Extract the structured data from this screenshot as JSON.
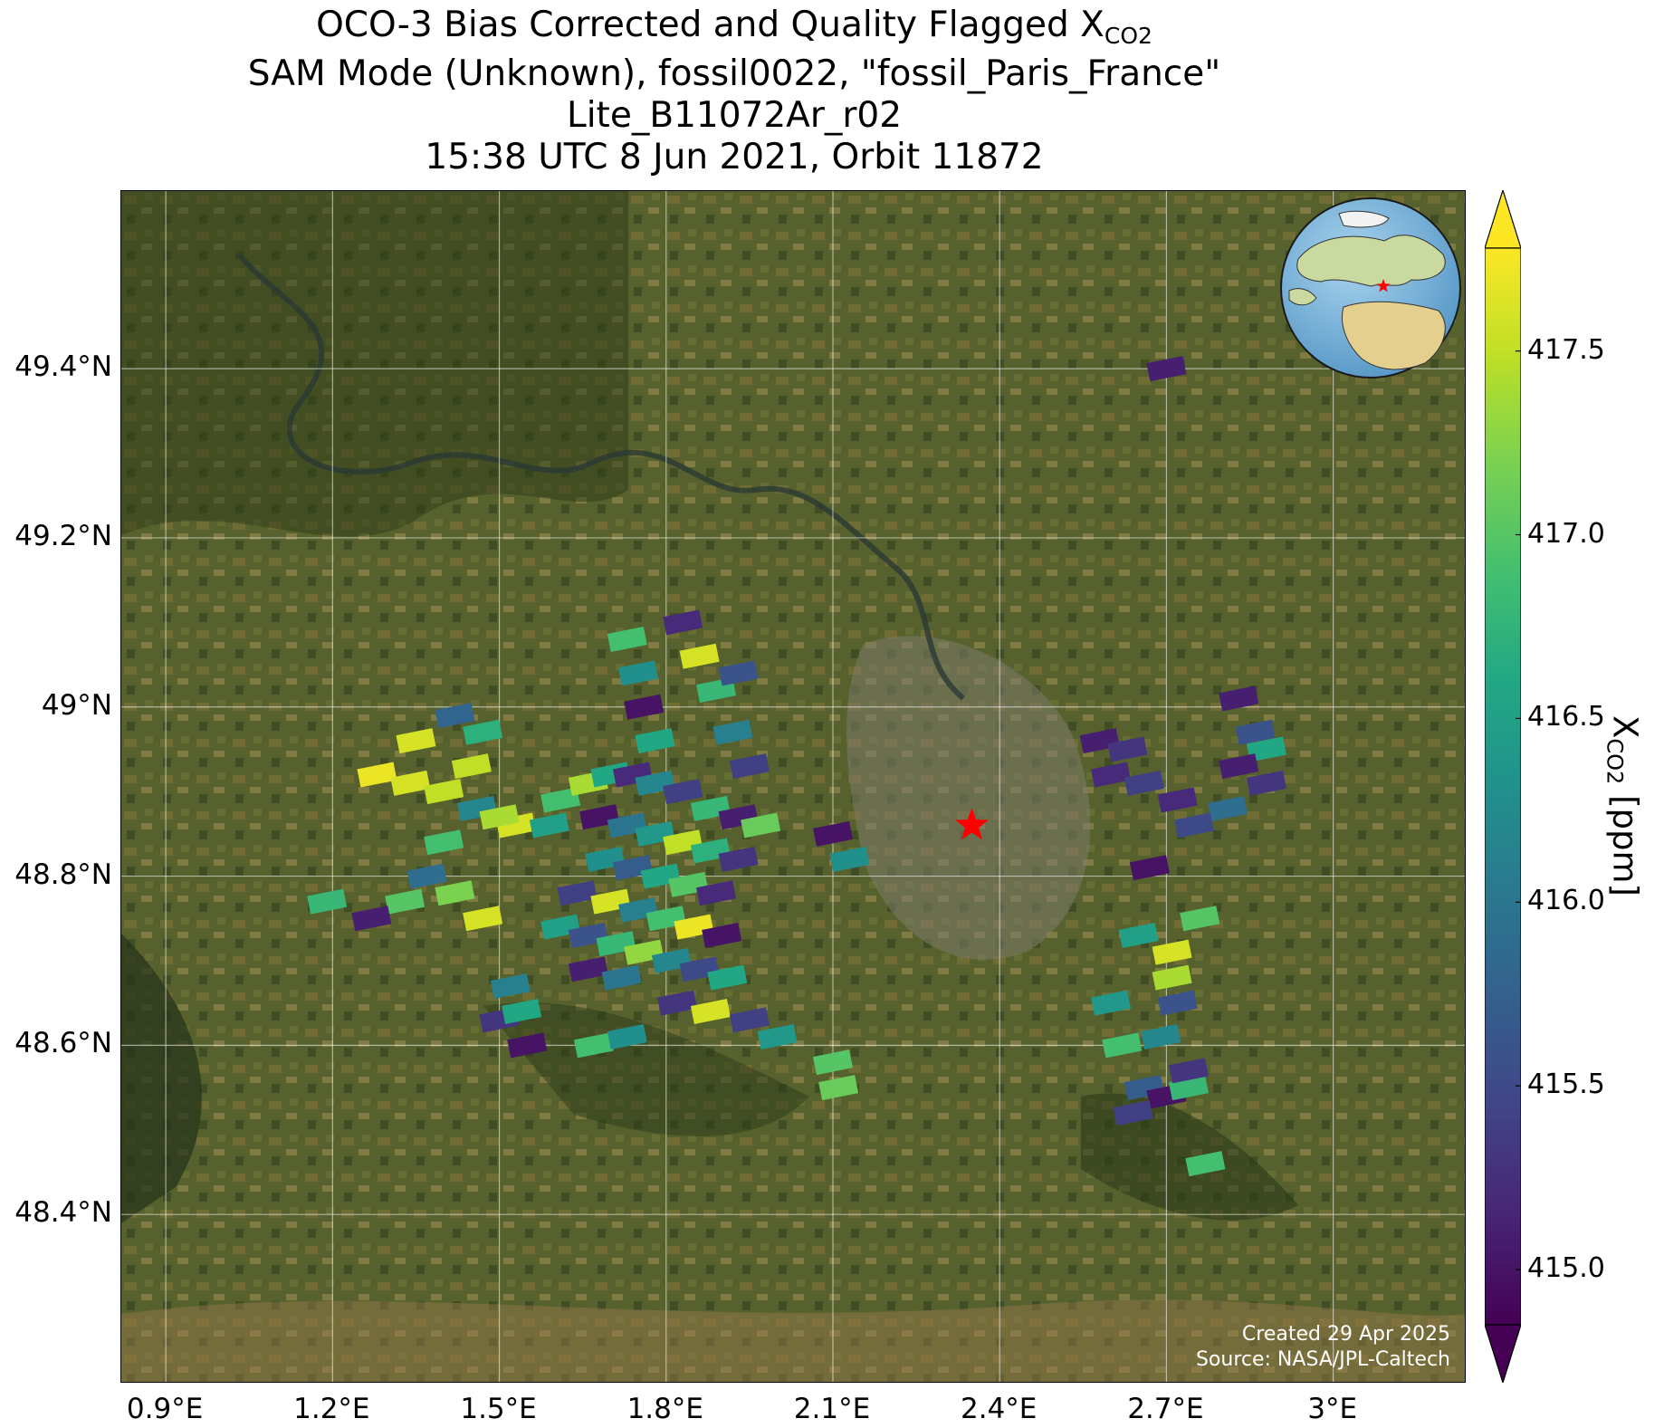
{
  "title": {
    "line1_prefix": "OCO-3 Bias Corrected and Quality Flagged X",
    "line1_sub": "CO2",
    "line2": "SAM Mode (Unknown), fossil0022, \"fossil_Paris_France\"",
    "line3": "Lite_B11072Ar_r02",
    "line4": "15:38 UTC 8 Jun 2021, Orbit 11872"
  },
  "map": {
    "lon_range": [
      0.82,
      3.24
    ],
    "lat_range": [
      48.2,
      49.61
    ],
    "lat_ticks": [
      {
        "value": 48.4,
        "label": "48.4°N"
      },
      {
        "value": 48.6,
        "label": "48.6°N"
      },
      {
        "value": 48.8,
        "label": "48.8°N"
      },
      {
        "value": 49.0,
        "label": "49°N"
      },
      {
        "value": 49.2,
        "label": "49.2°N"
      },
      {
        "value": 49.4,
        "label": "49.4°N"
      }
    ],
    "lon_ticks": [
      {
        "value": 0.9,
        "label": "0.9°E"
      },
      {
        "value": 1.2,
        "label": "1.2°E"
      },
      {
        "value": 1.5,
        "label": "1.5°E"
      },
      {
        "value": 1.8,
        "label": "1.8°E"
      },
      {
        "value": 2.1,
        "label": "2.1°E"
      },
      {
        "value": 2.4,
        "label": "2.4°E"
      },
      {
        "value": 2.7,
        "label": "2.7°E"
      },
      {
        "value": 3.0,
        "label": "3°E"
      }
    ],
    "target_marker": {
      "name": "fossil_Paris_France",
      "lon": 2.35,
      "lat": 48.86,
      "color": "#ff0000"
    },
    "background_color": "#4a5a2a"
  },
  "colorbar": {
    "min": 414.85,
    "max": 417.78,
    "ticks": [
      {
        "value": 415.0,
        "label": "415.0"
      },
      {
        "value": 415.5,
        "label": "415.5"
      },
      {
        "value": 416.0,
        "label": "416.0"
      },
      {
        "value": 416.5,
        "label": "416.5"
      },
      {
        "value": 417.0,
        "label": "417.0"
      },
      {
        "value": 417.5,
        "label": "417.5"
      }
    ],
    "label_prefix": "X",
    "label_sub": "CO2",
    "label_suffix": " [ppm]",
    "colormap": "viridis",
    "extend": "both"
  },
  "credits": {
    "created": "Created 29 Apr 2025",
    "source": "Source: NASA/JPL-Caltech"
  },
  "inset_globe": {
    "marker_color": "#ff0000"
  },
  "chart_data": {
    "type": "scatter",
    "variable": "XCO2",
    "points": [
      {
        "lon": 1.53,
        "lat": 48.86,
        "xco2": 417.6
      },
      {
        "lon": 1.59,
        "lat": 48.86,
        "xco2": 416.5
      },
      {
        "lon": 1.61,
        "lat": 48.89,
        "xco2": 416.9
      },
      {
        "lon": 1.66,
        "lat": 48.91,
        "xco2": 417.4
      },
      {
        "lon": 1.7,
        "lat": 48.92,
        "xco2": 416.6
      },
      {
        "lon": 1.74,
        "lat": 48.92,
        "xco2": 415.2
      },
      {
        "lon": 1.78,
        "lat": 48.91,
        "xco2": 416.2
      },
      {
        "lon": 1.83,
        "lat": 48.9,
        "xco2": 415.4
      },
      {
        "lon": 1.88,
        "lat": 48.88,
        "xco2": 416.8
      },
      {
        "lon": 1.93,
        "lat": 48.87,
        "xco2": 415.1
      },
      {
        "lon": 1.97,
        "lat": 48.86,
        "xco2": 417.1
      },
      {
        "lon": 1.68,
        "lat": 48.87,
        "xco2": 415.0
      },
      {
        "lon": 1.73,
        "lat": 48.86,
        "xco2": 416.0
      },
      {
        "lon": 1.78,
        "lat": 48.85,
        "xco2": 416.4
      },
      {
        "lon": 1.83,
        "lat": 48.84,
        "xco2": 417.5
      },
      {
        "lon": 1.88,
        "lat": 48.83,
        "xco2": 416.7
      },
      {
        "lon": 1.93,
        "lat": 48.82,
        "xco2": 415.3
      },
      {
        "lon": 1.69,
        "lat": 48.82,
        "xco2": 416.3
      },
      {
        "lon": 1.74,
        "lat": 48.81,
        "xco2": 415.7
      },
      {
        "lon": 1.79,
        "lat": 48.8,
        "xco2": 416.6
      },
      {
        "lon": 1.84,
        "lat": 48.79,
        "xco2": 417.0
      },
      {
        "lon": 1.89,
        "lat": 48.78,
        "xco2": 415.2
      },
      {
        "lon": 1.64,
        "lat": 48.78,
        "xco2": 415.4
      },
      {
        "lon": 1.7,
        "lat": 48.77,
        "xco2": 417.6
      },
      {
        "lon": 1.75,
        "lat": 48.76,
        "xco2": 416.1
      },
      {
        "lon": 1.8,
        "lat": 48.75,
        "xco2": 416.9
      },
      {
        "lon": 1.85,
        "lat": 48.74,
        "xco2": 417.7
      },
      {
        "lon": 1.9,
        "lat": 48.73,
        "xco2": 415.0
      },
      {
        "lon": 1.61,
        "lat": 48.74,
        "xco2": 416.5
      },
      {
        "lon": 1.66,
        "lat": 48.73,
        "xco2": 415.6
      },
      {
        "lon": 1.71,
        "lat": 48.72,
        "xco2": 416.8
      },
      {
        "lon": 1.76,
        "lat": 48.71,
        "xco2": 417.3
      },
      {
        "lon": 1.81,
        "lat": 48.7,
        "xco2": 416.2
      },
      {
        "lon": 1.86,
        "lat": 48.69,
        "xco2": 415.5
      },
      {
        "lon": 1.91,
        "lat": 48.68,
        "xco2": 416.6
      },
      {
        "lon": 1.66,
        "lat": 48.69,
        "xco2": 415.1
      },
      {
        "lon": 1.72,
        "lat": 48.68,
        "xco2": 416.0
      },
      {
        "lon": 1.82,
        "lat": 48.65,
        "xco2": 415.3
      },
      {
        "lon": 1.88,
        "lat": 48.64,
        "xco2": 417.6
      },
      {
        "lon": 1.95,
        "lat": 48.63,
        "xco2": 415.4
      },
      {
        "lon": 1.73,
        "lat": 49.08,
        "xco2": 416.9
      },
      {
        "lon": 1.75,
        "lat": 49.04,
        "xco2": 416.3
      },
      {
        "lon": 1.76,
        "lat": 49.0,
        "xco2": 415.0
      },
      {
        "lon": 1.78,
        "lat": 48.96,
        "xco2": 416.6
      },
      {
        "lon": 1.83,
        "lat": 49.1,
        "xco2": 415.2
      },
      {
        "lon": 1.86,
        "lat": 49.06,
        "xco2": 417.6
      },
      {
        "lon": 1.89,
        "lat": 49.02,
        "xco2": 416.8
      },
      {
        "lon": 1.92,
        "lat": 48.97,
        "xco2": 416.1
      },
      {
        "lon": 1.95,
        "lat": 48.93,
        "xco2": 415.4
      },
      {
        "lon": 1.93,
        "lat": 49.04,
        "xco2": 415.6
      },
      {
        "lon": 1.28,
        "lat": 48.92,
        "xco2": 417.7
      },
      {
        "lon": 1.34,
        "lat": 48.91,
        "xco2": 417.6
      },
      {
        "lon": 1.4,
        "lat": 48.9,
        "xco2": 417.5
      },
      {
        "lon": 1.46,
        "lat": 48.88,
        "xco2": 416.2
      },
      {
        "lon": 1.5,
        "lat": 48.87,
        "xco2": 417.4
      },
      {
        "lon": 1.35,
        "lat": 48.96,
        "xco2": 417.6
      },
      {
        "lon": 1.42,
        "lat": 48.99,
        "xco2": 415.8
      },
      {
        "lon": 1.47,
        "lat": 48.97,
        "xco2": 416.7
      },
      {
        "lon": 1.45,
        "lat": 48.93,
        "xco2": 417.5
      },
      {
        "lon": 1.4,
        "lat": 48.84,
        "xco2": 416.9
      },
      {
        "lon": 1.37,
        "lat": 48.8,
        "xco2": 415.9
      },
      {
        "lon": 1.42,
        "lat": 48.78,
        "xco2": 417.2
      },
      {
        "lon": 1.33,
        "lat": 48.77,
        "xco2": 417.0
      },
      {
        "lon": 1.27,
        "lat": 48.75,
        "xco2": 415.1
      },
      {
        "lon": 1.19,
        "lat": 48.77,
        "xco2": 416.8
      },
      {
        "lon": 1.47,
        "lat": 48.75,
        "xco2": 417.6
      },
      {
        "lon": 1.52,
        "lat": 48.67,
        "xco2": 416.1
      },
      {
        "lon": 1.5,
        "lat": 48.63,
        "xco2": 415.3
      },
      {
        "lon": 1.54,
        "lat": 48.64,
        "xco2": 416.6
      },
      {
        "lon": 1.55,
        "lat": 48.6,
        "xco2": 415.0
      },
      {
        "lon": 1.67,
        "lat": 48.6,
        "xco2": 416.9
      },
      {
        "lon": 1.73,
        "lat": 48.61,
        "xco2": 416.3
      },
      {
        "lon": 2.0,
        "lat": 48.61,
        "xco2": 416.4
      },
      {
        "lon": 2.1,
        "lat": 48.58,
        "xco2": 417.0
      },
      {
        "lon": 2.11,
        "lat": 48.55,
        "xco2": 417.1
      },
      {
        "lon": 2.1,
        "lat": 48.85,
        "xco2": 415.0
      },
      {
        "lon": 2.13,
        "lat": 48.82,
        "xco2": 416.3
      },
      {
        "lon": 2.58,
        "lat": 48.96,
        "xco2": 415.1
      },
      {
        "lon": 2.63,
        "lat": 48.95,
        "xco2": 415.3
      },
      {
        "lon": 2.6,
        "lat": 48.92,
        "xco2": 415.2
      },
      {
        "lon": 2.66,
        "lat": 48.91,
        "xco2": 415.4
      },
      {
        "lon": 2.72,
        "lat": 48.89,
        "xco2": 415.2
      },
      {
        "lon": 2.83,
        "lat": 49.01,
        "xco2": 415.1
      },
      {
        "lon": 2.86,
        "lat": 48.97,
        "xco2": 415.6
      },
      {
        "lon": 2.88,
        "lat": 48.95,
        "xco2": 416.6
      },
      {
        "lon": 2.83,
        "lat": 48.93,
        "xco2": 415.1
      },
      {
        "lon": 2.88,
        "lat": 48.91,
        "xco2": 415.3
      },
      {
        "lon": 2.81,
        "lat": 48.88,
        "xco2": 415.9
      },
      {
        "lon": 2.75,
        "lat": 48.86,
        "xco2": 415.5
      },
      {
        "lon": 2.7,
        "lat": 49.4,
        "xco2": 415.1
      },
      {
        "lon": 2.67,
        "lat": 48.81,
        "xco2": 415.0
      },
      {
        "lon": 2.76,
        "lat": 48.75,
        "xco2": 417.0
      },
      {
        "lon": 2.65,
        "lat": 48.73,
        "xco2": 416.5
      },
      {
        "lon": 2.71,
        "lat": 48.71,
        "xco2": 417.6
      },
      {
        "lon": 2.71,
        "lat": 48.68,
        "xco2": 417.4
      },
      {
        "lon": 2.72,
        "lat": 48.65,
        "xco2": 415.6
      },
      {
        "lon": 2.6,
        "lat": 48.65,
        "xco2": 416.4
      },
      {
        "lon": 2.69,
        "lat": 48.61,
        "xco2": 416.2
      },
      {
        "lon": 2.62,
        "lat": 48.6,
        "xco2": 416.9
      },
      {
        "lon": 2.66,
        "lat": 48.55,
        "xco2": 415.7
      },
      {
        "lon": 2.7,
        "lat": 48.54,
        "xco2": 415.0
      },
      {
        "lon": 2.74,
        "lat": 48.55,
        "xco2": 416.8
      },
      {
        "lon": 2.64,
        "lat": 48.52,
        "xco2": 415.4
      },
      {
        "lon": 2.74,
        "lat": 48.57,
        "xco2": 415.3
      },
      {
        "lon": 2.77,
        "lat": 48.46,
        "xco2": 416.9
      }
    ]
  }
}
